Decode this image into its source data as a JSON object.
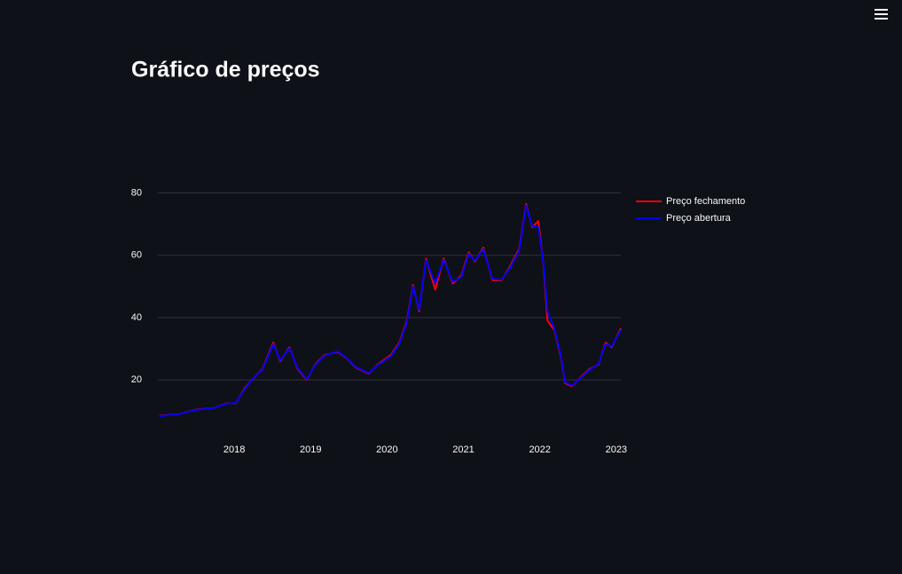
{
  "header": {
    "title": "Gráfico de preços"
  },
  "chart_data": {
    "type": "line",
    "x": [
      2017.02,
      2017.27,
      2017.5,
      2017.73,
      2017.9,
      2018.02,
      2018.14,
      2018.25,
      2018.37,
      2018.51,
      2018.6,
      2018.72,
      2018.83,
      2018.95,
      2019.06,
      2019.18,
      2019.35,
      2019.47,
      2019.59,
      2019.76,
      2019.88,
      2020.05,
      2020.16,
      2020.26,
      2020.34,
      2020.42,
      2020.51,
      2020.63,
      2020.74,
      2020.86,
      2020.97,
      2021.07,
      2021.15,
      2021.26,
      2021.38,
      2021.5,
      2021.61,
      2021.73,
      2021.82,
      2021.9,
      2021.98,
      2022.05,
      2022.1,
      2022.19,
      2022.27,
      2022.33,
      2022.42,
      2022.54,
      2022.65,
      2022.77,
      2022.86,
      2022.94,
      2023.06
    ],
    "series": [
      {
        "name": "Preço fechamento",
        "color": "#ff0000",
        "values": [
          8.5,
          9,
          10.5,
          11,
          12.5,
          12.5,
          17.5,
          20.5,
          23.5,
          32,
          26,
          30.5,
          23.5,
          20,
          25,
          28,
          29,
          27,
          24,
          22,
          25,
          28,
          32,
          39,
          50.5,
          42,
          59,
          49,
          59,
          51,
          53.5,
          61,
          58,
          62.5,
          52,
          52,
          56.5,
          62,
          76.5,
          69,
          71,
          56.5,
          39,
          36,
          28,
          19,
          18,
          21,
          23.5,
          25,
          32,
          30.5,
          36.5
        ]
      },
      {
        "name": "Preço abertura",
        "color": "#0000ff",
        "values": [
          8.4,
          9,
          10.4,
          11,
          12.4,
          12.6,
          17.2,
          20.6,
          23.3,
          31.5,
          26.3,
          30.2,
          23.8,
          20.2,
          24.8,
          27.8,
          29.2,
          27.1,
          24.2,
          22.2,
          24.8,
          27.6,
          31.6,
          38.5,
          50,
          42.5,
          58.5,
          51,
          58.5,
          51.5,
          53,
          60.5,
          58.3,
          62,
          52.4,
          52.2,
          56,
          61.5,
          76,
          69.4,
          69,
          57,
          42,
          36.4,
          28.5,
          19.3,
          18.2,
          20.8,
          23.2,
          25.2,
          31.5,
          30.8,
          36
        ]
      }
    ],
    "xlim": [
      2017.0,
      2023.06
    ],
    "xticks": [
      2018,
      2019,
      2020,
      2021,
      2022,
      2023
    ],
    "ylim": [
      3,
      85
    ],
    "yticks": [
      20,
      40,
      60,
      80
    ],
    "grid": true,
    "legend": "right"
  }
}
